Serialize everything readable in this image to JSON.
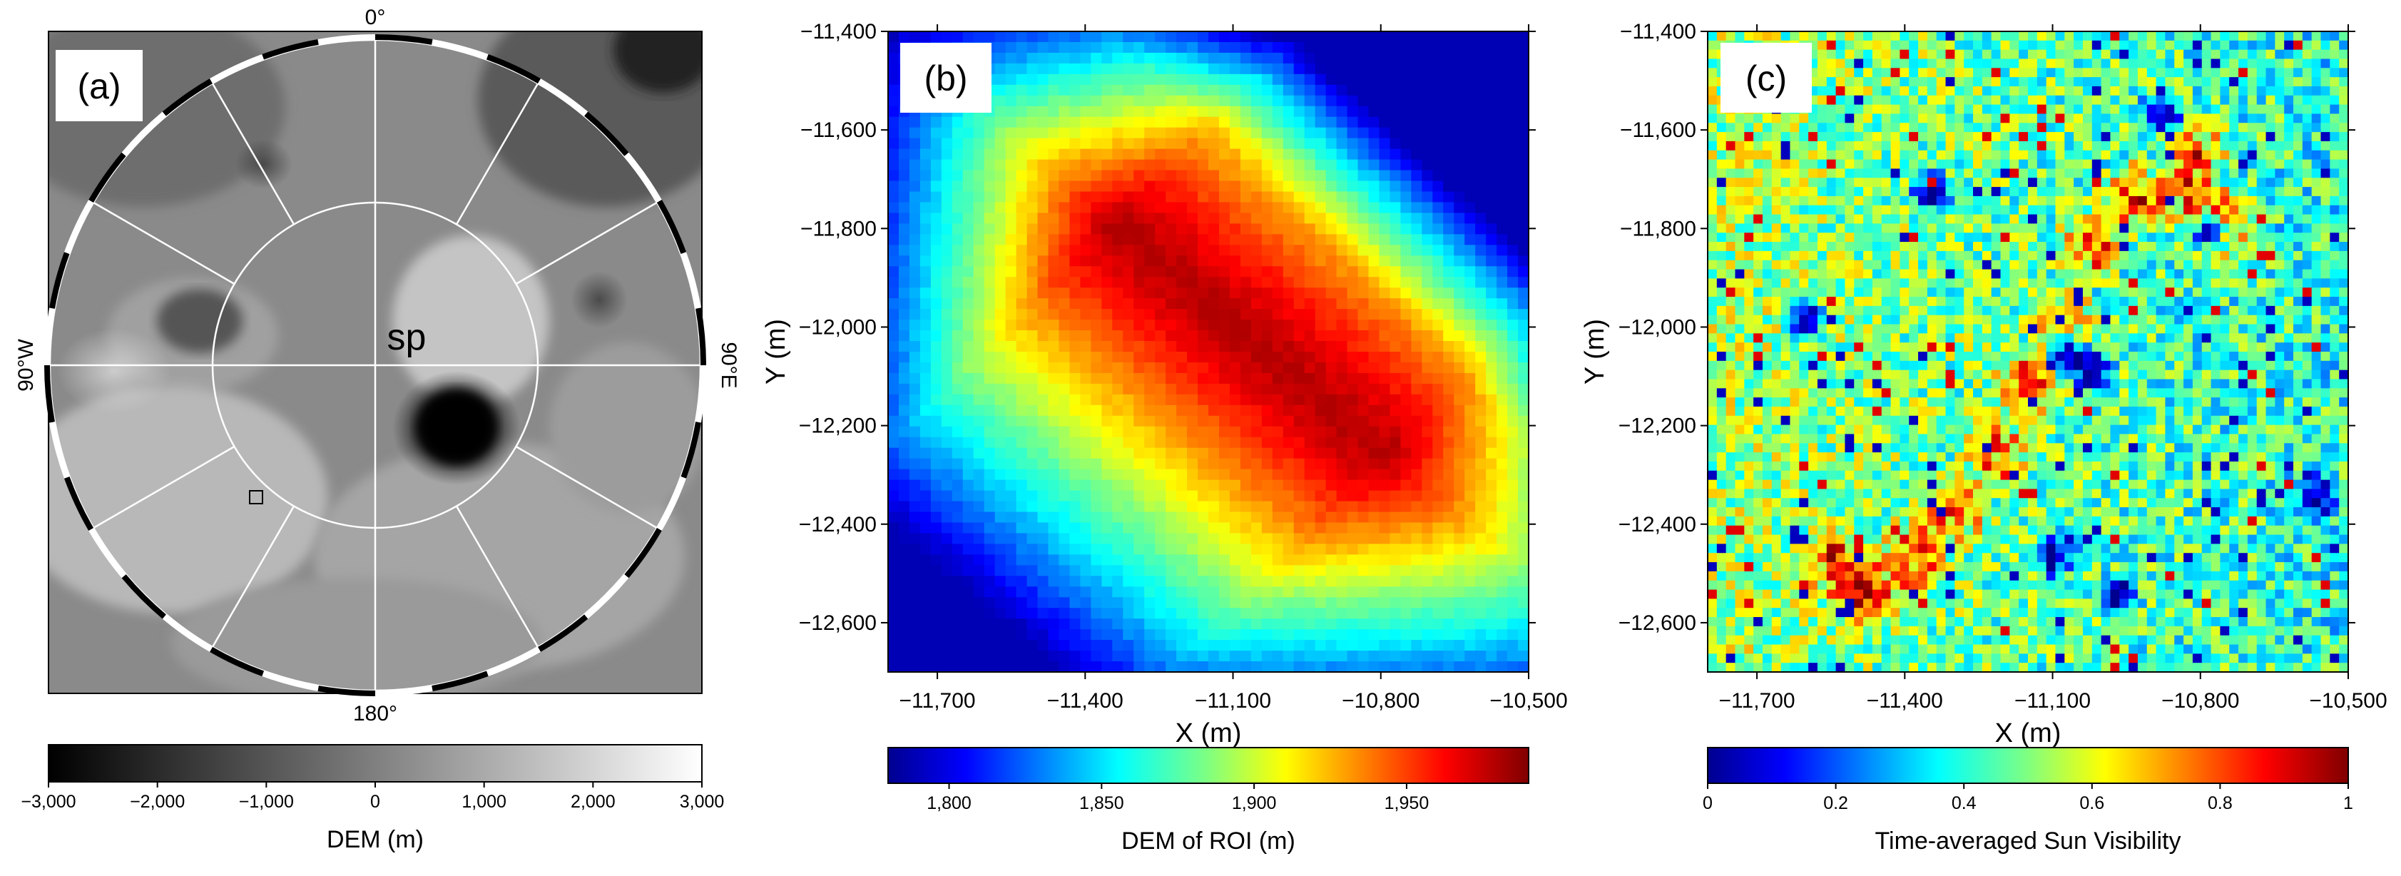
{
  "chart_data": [
    {
      "panel": "(a)",
      "type": "heatmap",
      "description_label": "sp",
      "compass": {
        "top": "0°",
        "right": "90°E",
        "bottom": "180°",
        "left": "90°W"
      },
      "colorbar": {
        "label": "DEM (m)",
        "range": [
          -3000,
          3000
        ],
        "ticks": [
          "−3,000",
          "−2,000",
          "−1,000",
          "0",
          "1,000",
          "2,000",
          "3,000"
        ],
        "colors": [
          "#000000",
          "#ffffff"
        ]
      }
    },
    {
      "panel": "(b)",
      "type": "heatmap",
      "xlabel": "X (m)",
      "ylabel": "Y (m)",
      "xlim": [
        -11800,
        -10500
      ],
      "ylim": [
        -12700,
        -11400
      ],
      "xticks": [
        "−11,700",
        "−11,400",
        "−11,100",
        "−10,800",
        "−10,500"
      ],
      "yticks": [
        "−11,400",
        "−11,600",
        "−11,800",
        "−12,000",
        "−12,200",
        "−12,400",
        "−12,600"
      ],
      "colorbar": {
        "label": "DEM of ROI (m)",
        "range": [
          1780,
          1990
        ],
        "ticks": [
          "1,800",
          "1,850",
          "1,900",
          "1,950"
        ]
      }
    },
    {
      "panel": "(c)",
      "type": "heatmap",
      "xlabel": "X (m)",
      "ylabel": "Y (m)",
      "xlim": [
        -11800,
        -10500
      ],
      "ylim": [
        -12700,
        -11400
      ],
      "xticks": [
        "−11,700",
        "−11,400",
        "−11,100",
        "−10,800",
        "−10,500"
      ],
      "yticks": [
        "−11,400",
        "−11,600",
        "−11,800",
        "−12,000",
        "−12,200",
        "−12,400",
        "−12,600"
      ],
      "colorbar": {
        "label": "Time-averaged Sun Visibility",
        "range": [
          0,
          1
        ],
        "ticks": [
          "0",
          "0.2",
          "0.4",
          "0.6",
          "0.8",
          "1"
        ]
      }
    }
  ],
  "colors": {
    "jet": [
      "#00008f",
      "#0000ff",
      "#0080ff",
      "#00ffff",
      "#80ff80",
      "#ffff00",
      "#ff8000",
      "#ff0000",
      "#800000"
    ]
  }
}
